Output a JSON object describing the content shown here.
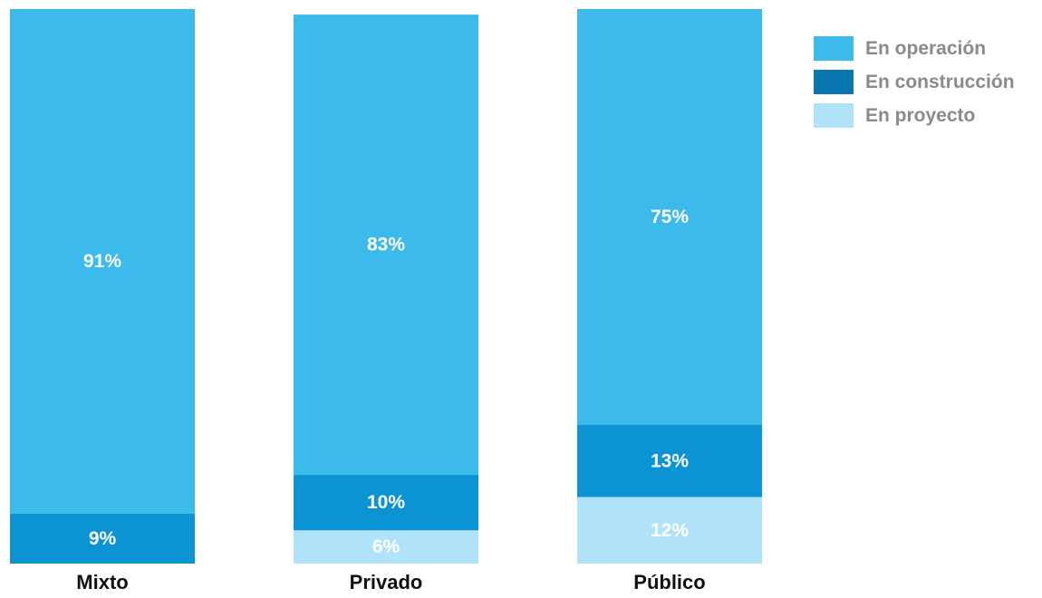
{
  "chart_data": {
    "type": "bar",
    "stacked": true,
    "normalized": true,
    "categories": [
      "Mixto",
      "Privado",
      "Público"
    ],
    "series": [
      {
        "name": "En operación",
        "values": [
          91,
          83,
          75
        ],
        "labels": [
          "91%",
          "83%",
          "75%"
        ],
        "color": "#3bbaeb"
      },
      {
        "name": "En construcción",
        "values": [
          9,
          10,
          13
        ],
        "labels": [
          "9%",
          "10%",
          "13%"
        ],
        "color": "#0c93d3"
      },
      {
        "name": "En proyecto",
        "values": [
          0,
          6,
          12
        ],
        "labels": [
          "",
          "6%",
          "12%"
        ],
        "color": "#b0e3fa"
      }
    ],
    "legend_colors": [
      "#3bbaeb",
      "#0a76b0",
      "#b0e3fa"
    ],
    "title": "",
    "xlabel": "",
    "ylabel": "",
    "ylim": [
      0,
      100
    ],
    "grid": false,
    "legend_position": "top-right"
  }
}
